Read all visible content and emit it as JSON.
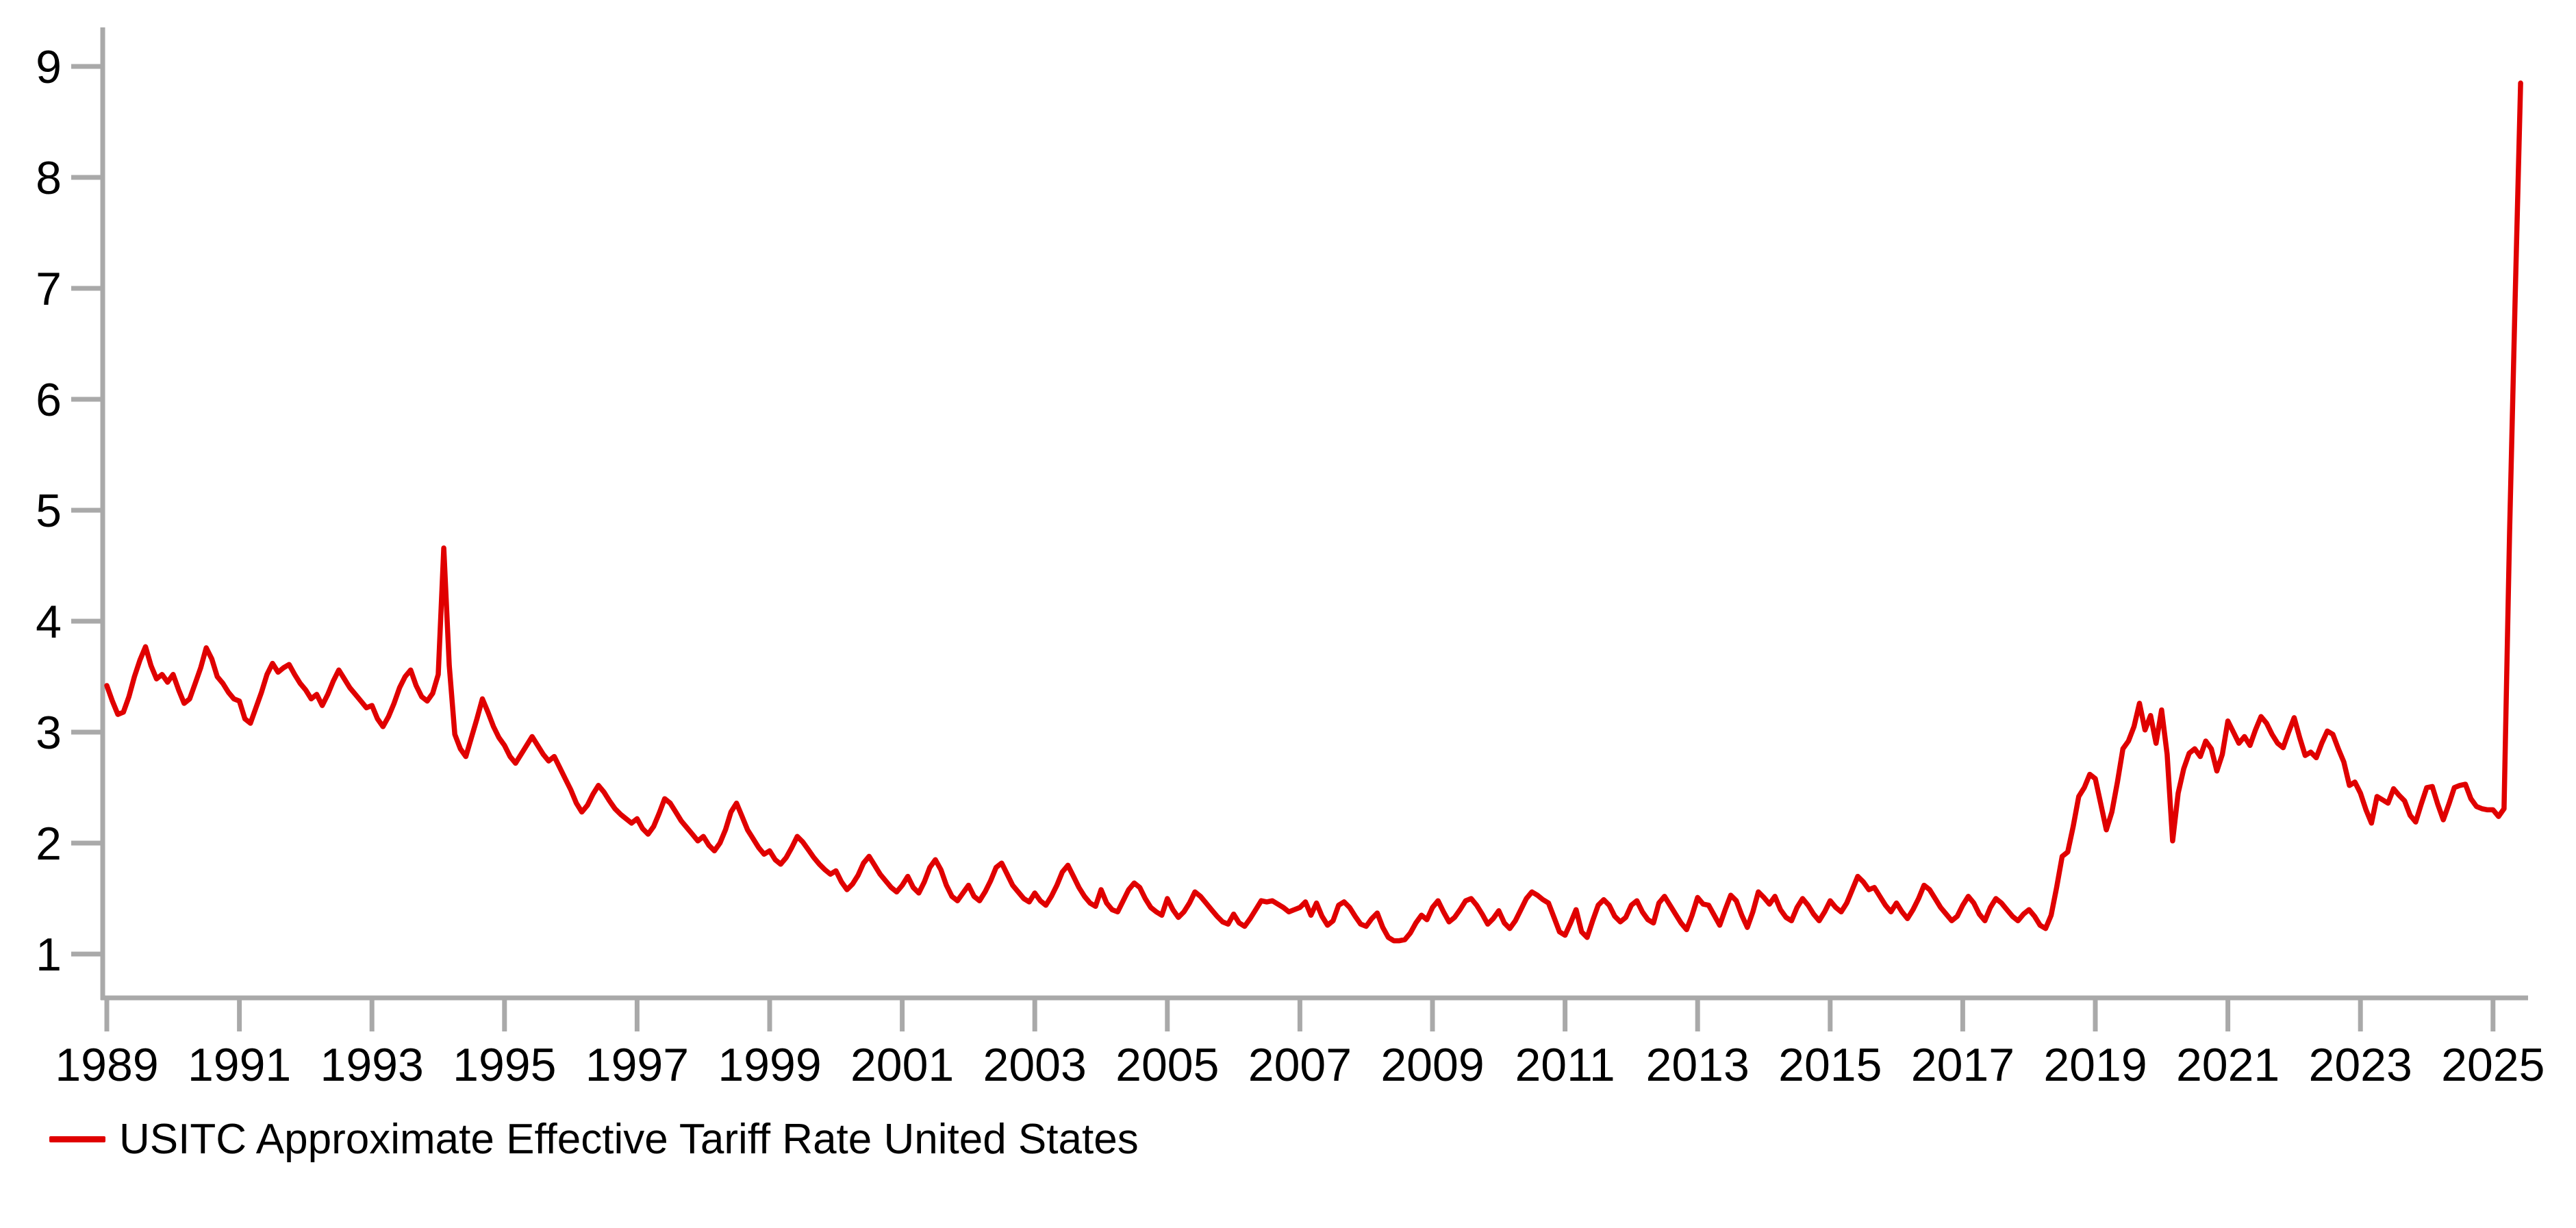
{
  "legend": {
    "label": "USITC Approximate Effective Tariff Rate United States"
  },
  "chart_data": {
    "type": "line",
    "title": "",
    "xlabel": "",
    "ylabel": "",
    "legend_position": "bottom-left",
    "grid": false,
    "line_color": "#e00000",
    "axis_color": "#a9a9a9",
    "label_color": "#000000",
    "ylim": [
      0.6,
      9.4
    ],
    "xlim": [
      1988.95,
      2025.6
    ],
    "y_ticks": [
      1,
      2,
      3,
      4,
      5,
      6,
      7,
      8,
      9
    ],
    "x_ticks": [
      1989,
      1991,
      1993,
      1995,
      1997,
      1999,
      2001,
      2003,
      2005,
      2007,
      2009,
      2011,
      2013,
      2015,
      2017,
      2019,
      2021,
      2023,
      2025
    ],
    "series": [
      {
        "name": "USITC Approximate Effective Tariff Rate United States",
        "x_start_year": 1989.0,
        "x_step_years": 0.0833333,
        "values": [
          3.42,
          3.28,
          3.16,
          3.18,
          3.32,
          3.5,
          3.65,
          3.77,
          3.6,
          3.48,
          3.52,
          3.45,
          3.52,
          3.38,
          3.26,
          3.3,
          3.44,
          3.58,
          3.76,
          3.66,
          3.5,
          3.44,
          3.36,
          3.3,
          3.28,
          3.12,
          3.08,
          3.22,
          3.36,
          3.52,
          3.62,
          3.54,
          3.58,
          3.61,
          3.52,
          3.44,
          3.38,
          3.3,
          3.34,
          3.24,
          3.34,
          3.46,
          3.56,
          3.48,
          3.4,
          3.34,
          3.28,
          3.22,
          3.24,
          3.12,
          3.05,
          3.14,
          3.26,
          3.4,
          3.5,
          3.56,
          3.42,
          3.32,
          3.28,
          3.35,
          3.52,
          4.66,
          3.6,
          2.98,
          2.85,
          2.78,
          2.95,
          3.12,
          3.3,
          3.18,
          3.05,
          2.95,
          2.88,
          2.78,
          2.72,
          2.8,
          2.88,
          2.96,
          2.88,
          2.8,
          2.74,
          2.78,
          2.68,
          2.58,
          2.48,
          2.36,
          2.28,
          2.34,
          2.44,
          2.52,
          2.46,
          2.38,
          2.31,
          2.26,
          2.22,
          2.18,
          2.22,
          2.13,
          2.08,
          2.15,
          2.27,
          2.4,
          2.36,
          2.28,
          2.2,
          2.14,
          2.08,
          2.02,
          2.06,
          1.98,
          1.93,
          2.0,
          2.12,
          2.28,
          2.36,
          2.24,
          2.12,
          2.04,
          1.96,
          1.9,
          1.93,
          1.85,
          1.81,
          1.87,
          1.96,
          2.06,
          2.01,
          1.94,
          1.87,
          1.81,
          1.76,
          1.72,
          1.75,
          1.65,
          1.58,
          1.63,
          1.71,
          1.82,
          1.88,
          1.8,
          1.72,
          1.66,
          1.6,
          1.56,
          1.62,
          1.7,
          1.6,
          1.55,
          1.65,
          1.78,
          1.85,
          1.76,
          1.62,
          1.52,
          1.48,
          1.55,
          1.62,
          1.52,
          1.48,
          1.56,
          1.66,
          1.78,
          1.82,
          1.72,
          1.62,
          1.56,
          1.5,
          1.47,
          1.55,
          1.48,
          1.44,
          1.52,
          1.62,
          1.74,
          1.8,
          1.7,
          1.6,
          1.52,
          1.46,
          1.43,
          1.58,
          1.46,
          1.4,
          1.38,
          1.48,
          1.58,
          1.64,
          1.6,
          1.5,
          1.42,
          1.38,
          1.35,
          1.5,
          1.4,
          1.33,
          1.38,
          1.46,
          1.56,
          1.52,
          1.46,
          1.4,
          1.34,
          1.29,
          1.27,
          1.36,
          1.28,
          1.25,
          1.32,
          1.4,
          1.48,
          1.47,
          1.48,
          1.45,
          1.42,
          1.38,
          1.4,
          1.42,
          1.47,
          1.35,
          1.46,
          1.34,
          1.26,
          1.3,
          1.44,
          1.47,
          1.42,
          1.34,
          1.27,
          1.25,
          1.32,
          1.37,
          1.24,
          1.15,
          1.12,
          1.12,
          1.13,
          1.19,
          1.28,
          1.35,
          1.31,
          1.42,
          1.48,
          1.38,
          1.29,
          1.33,
          1.4,
          1.48,
          1.5,
          1.44,
          1.36,
          1.27,
          1.32,
          1.39,
          1.28,
          1.23,
          1.3,
          1.4,
          1.5,
          1.56,
          1.53,
          1.49,
          1.46,
          1.33,
          1.2,
          1.17,
          1.28,
          1.4,
          1.2,
          1.15,
          1.3,
          1.44,
          1.49,
          1.44,
          1.34,
          1.29,
          1.33,
          1.44,
          1.48,
          1.38,
          1.31,
          1.28,
          1.46,
          1.52,
          1.44,
          1.36,
          1.28,
          1.22,
          1.35,
          1.51,
          1.45,
          1.44,
          1.35,
          1.26,
          1.4,
          1.53,
          1.48,
          1.35,
          1.24,
          1.38,
          1.56,
          1.51,
          1.45,
          1.52,
          1.4,
          1.33,
          1.3,
          1.42,
          1.5,
          1.44,
          1.36,
          1.3,
          1.38,
          1.48,
          1.42,
          1.38,
          1.46,
          1.58,
          1.7,
          1.65,
          1.58,
          1.6,
          1.52,
          1.44,
          1.38,
          1.46,
          1.38,
          1.32,
          1.4,
          1.5,
          1.62,
          1.58,
          1.5,
          1.42,
          1.36,
          1.3,
          1.34,
          1.44,
          1.52,
          1.46,
          1.36,
          1.3,
          1.42,
          1.5,
          1.46,
          1.4,
          1.34,
          1.3,
          1.36,
          1.4,
          1.34,
          1.26,
          1.23,
          1.35,
          1.6,
          1.88,
          1.92,
          2.15,
          2.42,
          2.5,
          2.62,
          2.58,
          2.35,
          2.12,
          2.28,
          2.55,
          2.85,
          2.92,
          3.05,
          3.26,
          3.02,
          3.15,
          2.9,
          3.2,
          2.8,
          2.02,
          2.45,
          2.67,
          2.81,
          2.85,
          2.78,
          2.92,
          2.85,
          2.65,
          2.8,
          3.1,
          3.0,
          2.9,
          2.96,
          2.88,
          3.02,
          3.14,
          3.08,
          2.98,
          2.9,
          2.86,
          3.0,
          3.13,
          2.95,
          2.79,
          2.82,
          2.77,
          2.9,
          3.01,
          2.98,
          2.85,
          2.73,
          2.52,
          2.55,
          2.45,
          2.3,
          2.18,
          2.42,
          2.39,
          2.36,
          2.49,
          2.43,
          2.38,
          2.25,
          2.19,
          2.35,
          2.5,
          2.51,
          2.35,
          2.21,
          2.35,
          2.5,
          2.52,
          2.53,
          2.4,
          2.33,
          2.31,
          2.3,
          2.3,
          2.24,
          2.31,
          4.8,
          6.9,
          8.85
        ]
      }
    ]
  }
}
